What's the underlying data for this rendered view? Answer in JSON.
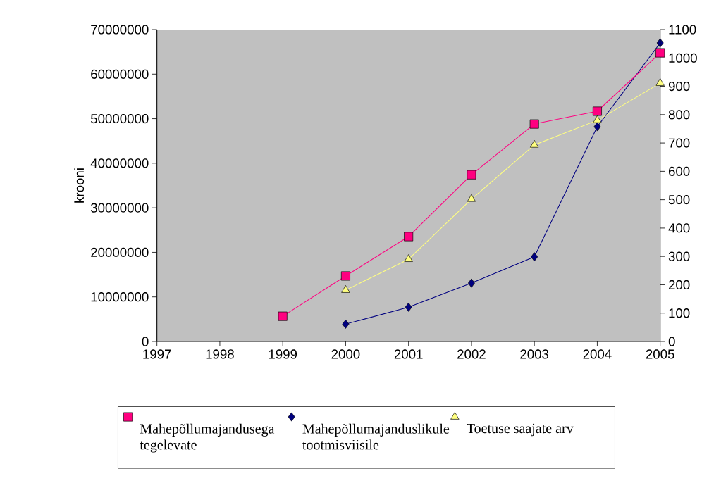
{
  "chart_data": {
    "type": "line",
    "ylabel": "krooni",
    "categories": [
      "1997",
      "1998",
      "1999",
      "2000",
      "2001",
      "2002",
      "2003",
      "2004",
      "2005"
    ],
    "ylim": [
      0,
      70000000
    ],
    "yticks": [
      0,
      10000000,
      20000000,
      30000000,
      40000000,
      50000000,
      60000000,
      70000000
    ],
    "y2lim": [
      0,
      1100
    ],
    "y2ticks": [
      0,
      100,
      200,
      300,
      400,
      500,
      600,
      700,
      800,
      900,
      1000,
      1100
    ],
    "series": [
      {
        "name": "Mahepõllumajandusega tegelevate",
        "color": "#ff0080",
        "axis": "y2",
        "marker": "square",
        "values": [
          null,
          null,
          89,
          231,
          370,
          588,
          767,
          812,
          1018
        ]
      },
      {
        "name": "Mahepõllumajanduslikule tootmisviisile",
        "color": "#000080",
        "marker": "diamond",
        "values": [
          null,
          null,
          null,
          3900000,
          7700000,
          13100000,
          19000000,
          48200000,
          67000000
        ]
      },
      {
        "name": "Toetuse saajate arv",
        "color": "#ffff80",
        "axis": "y2",
        "marker": "triangle",
        "values": [
          null,
          null,
          null,
          181,
          290,
          502,
          693,
          780,
          911
        ]
      }
    ],
    "legend": "bottom",
    "grid": false,
    "line_style": "solid"
  }
}
